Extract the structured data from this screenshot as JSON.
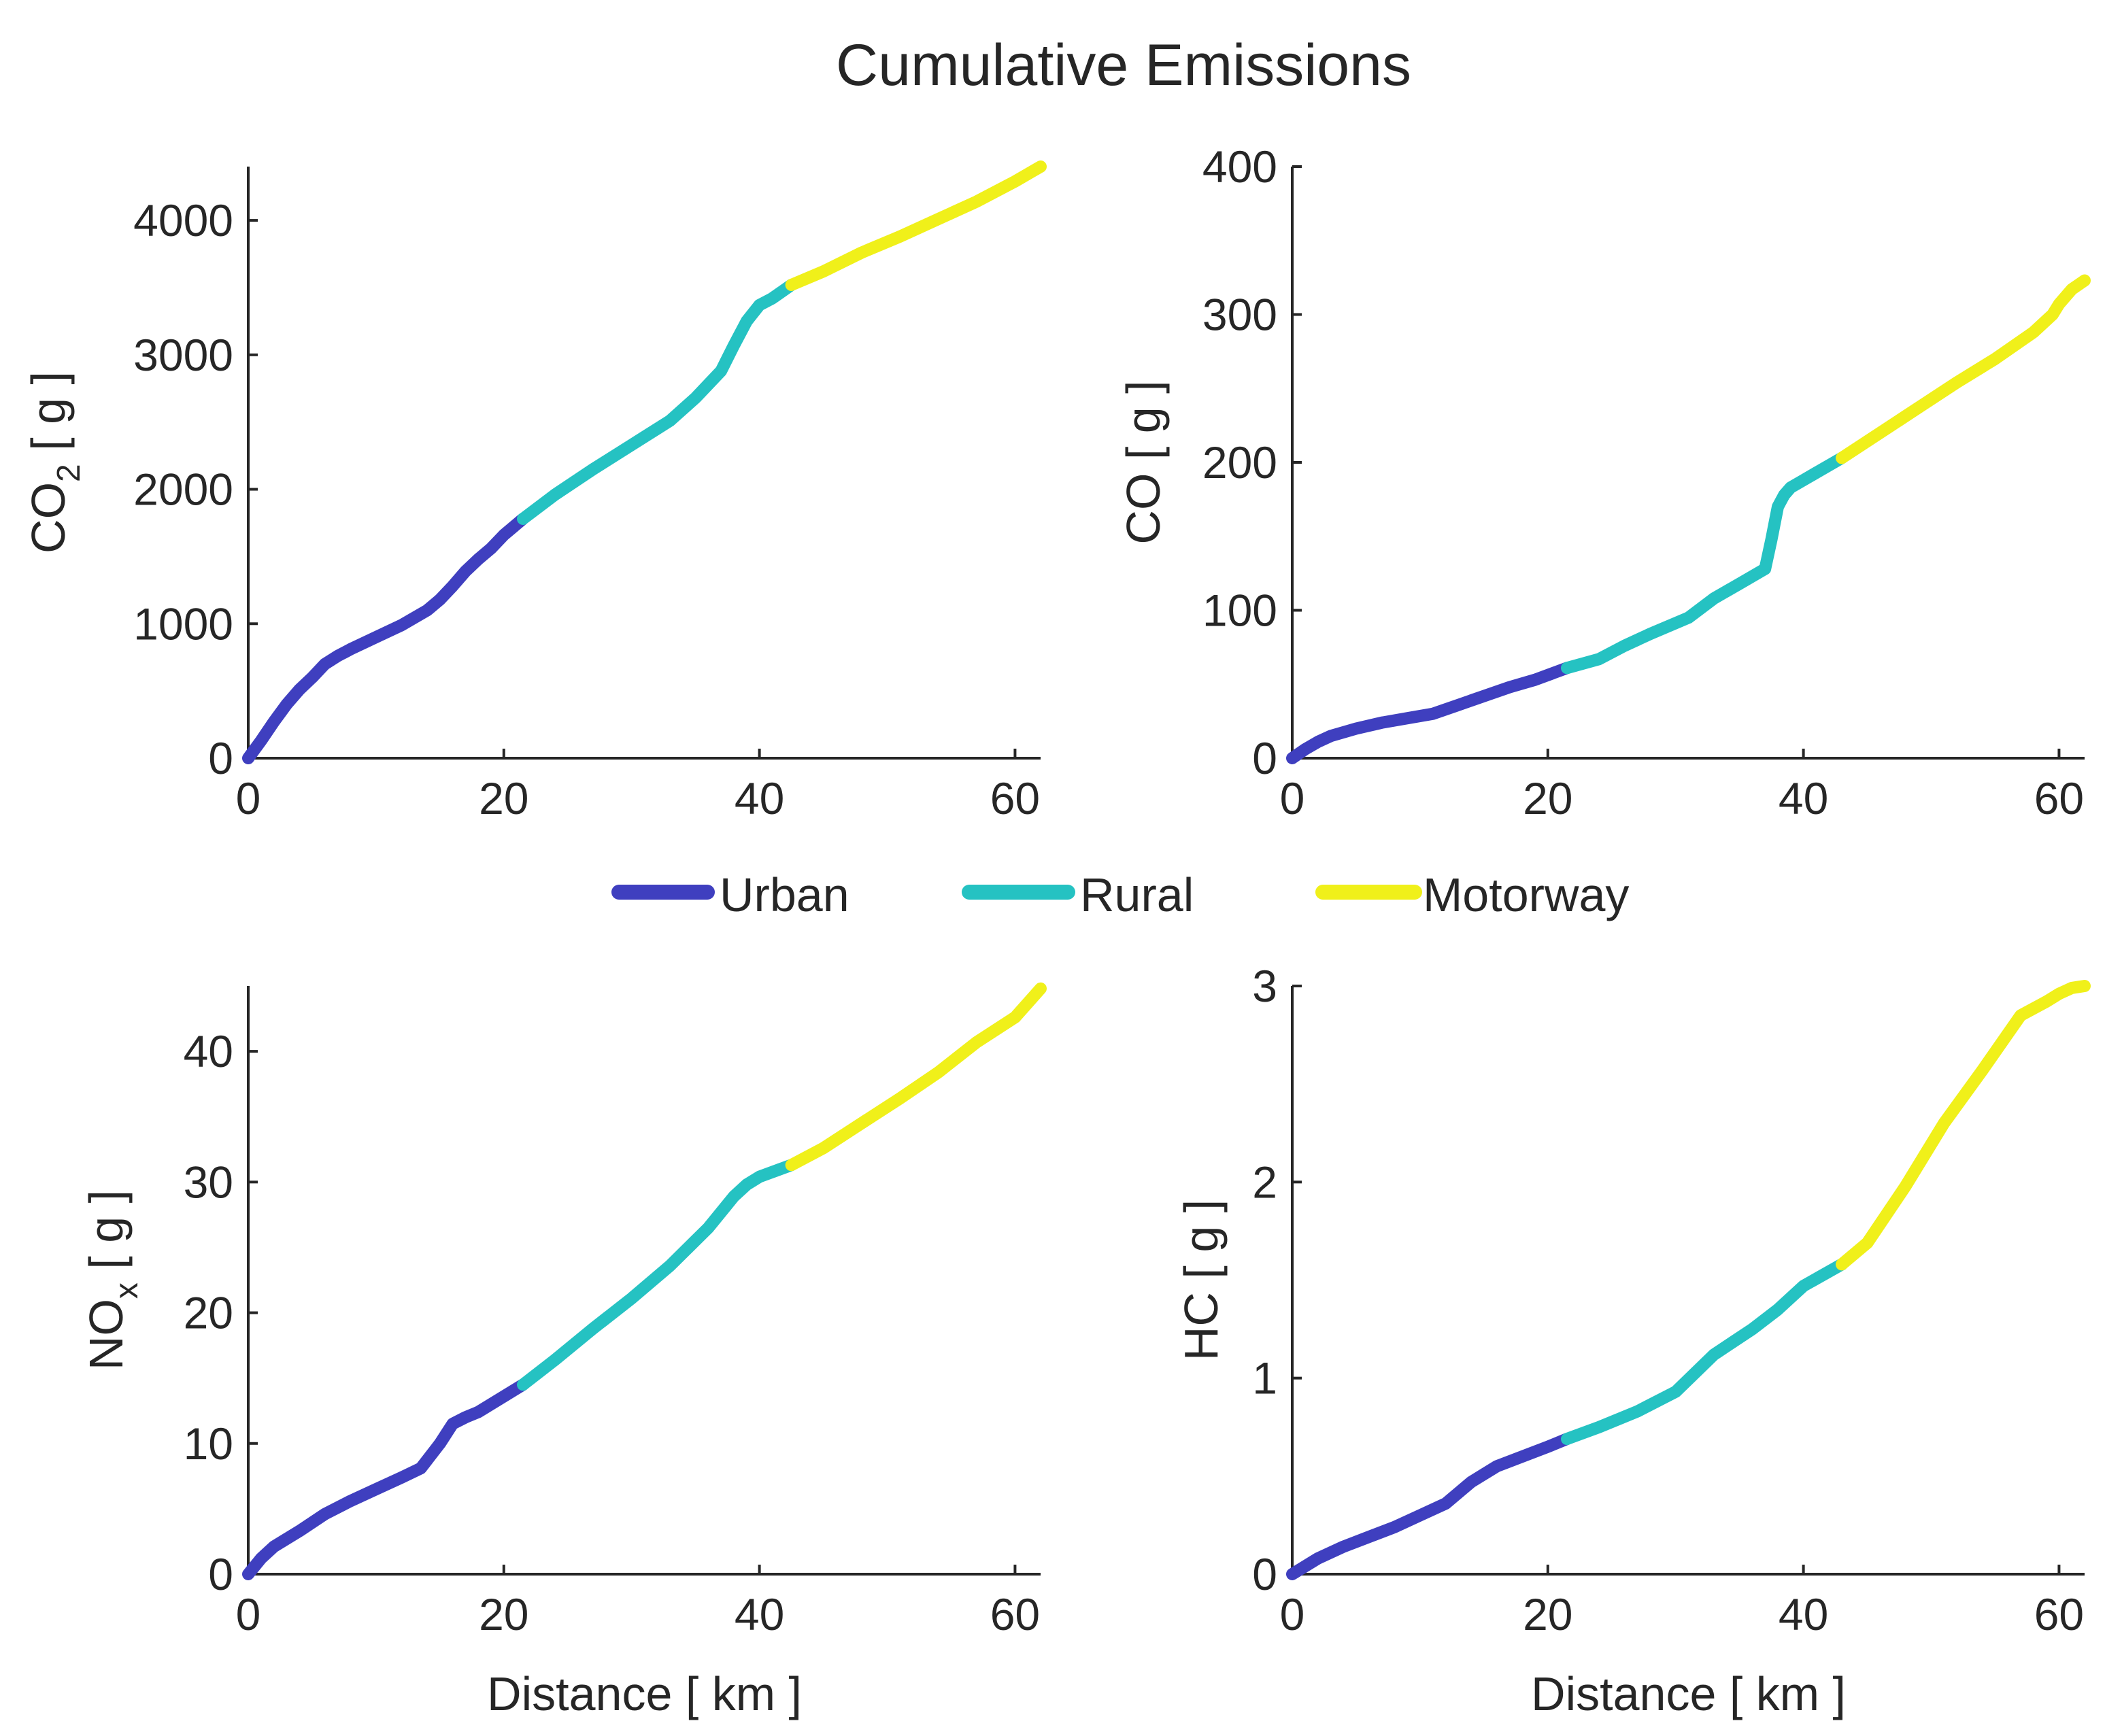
{
  "chart_data": {
    "title": "Cumulative Emissions",
    "type": "line",
    "legend": {
      "placement": "center",
      "entries": [
        {
          "name": "Urban",
          "color": "#3f3fbf"
        },
        {
          "name": "Rural",
          "color": "#25c2c2"
        },
        {
          "name": "Motorway",
          "color": "#f0f01a"
        }
      ]
    },
    "subplots": [
      {
        "id": "co2",
        "ylabel": "CO",
        "ylabel_sub": "2",
        "ylabel_unit": " [ g ]",
        "xlabel": "",
        "xlim": [
          0,
          62
        ],
        "ylim": [
          0,
          4400
        ],
        "xticks": [
          "0",
          "20",
          "40",
          "60"
        ],
        "yticks": [
          "0",
          "1000",
          "2000",
          "3000",
          "4000"
        ],
        "series": [
          {
            "name": "Urban",
            "x": [
              0,
              1,
              2,
              3,
              4,
              5,
              6,
              7,
              8,
              10,
              12,
              14,
              15,
              16,
              17,
              18,
              19,
              20,
              21.5
            ],
            "y": [
              0,
              130,
              270,
              400,
              510,
              600,
              700,
              760,
              810,
              900,
              990,
              1100,
              1180,
              1280,
              1390,
              1480,
              1560,
              1660,
              1780
            ]
          },
          {
            "name": "Rural",
            "x": [
              21.5,
              24,
              27,
              30,
              33,
              35,
              37,
              38,
              39,
              40,
              41,
              42.5
            ],
            "y": [
              1780,
              1960,
              2150,
              2330,
              2510,
              2680,
              2880,
              3070,
              3250,
              3370,
              3420,
              3520
            ]
          },
          {
            "name": "Motorway",
            "x": [
              42.5,
              45,
              48,
              51,
              54,
              57,
              60,
              62
            ],
            "y": [
              3520,
              3620,
              3760,
              3880,
              4010,
              4140,
              4290,
              4400
            ]
          }
        ]
      },
      {
        "id": "co",
        "ylabel": "CO",
        "ylabel_sub": "",
        "ylabel_unit": " [ g ]",
        "xlabel": "",
        "xlim": [
          0,
          62
        ],
        "ylim": [
          0,
          400
        ],
        "xticks": [
          "0",
          "20",
          "40",
          "60"
        ],
        "yticks": [
          "0",
          "100",
          "200",
          "300",
          "400"
        ],
        "series": [
          {
            "name": "Urban",
            "x": [
              0,
              1,
              2,
              3,
              5,
              7,
              9,
              11,
              13,
              15,
              17,
              19,
              21.5
            ],
            "y": [
              0,
              6,
              11,
              15,
              20,
              24,
              27,
              30,
              36,
              42,
              48,
              53,
              61
            ]
          },
          {
            "name": "Rural",
            "x": [
              21.5,
              24,
              26,
              28,
              31,
              33,
              35,
              37,
              37.5,
              38,
              38.5,
              39,
              40,
              41,
              43
            ],
            "y": [
              61,
              67,
              76,
              84,
              95,
              108,
              118,
              128,
              148,
              170,
              178,
              183,
              188,
              193,
              203
            ]
          },
          {
            "name": "Motorway",
            "x": [
              43,
              46,
              49,
              52,
              55,
              58,
              59.5,
              60,
              61,
              62
            ],
            "y": [
              203,
              220,
              237,
              254,
              270,
              288,
              300,
              307,
              317,
              323
            ]
          }
        ]
      },
      {
        "id": "nox",
        "ylabel": "NO",
        "ylabel_sub": "x",
        "ylabel_unit": " [ g ]",
        "xlabel": "Distance [ km ]",
        "xlim": [
          0,
          62
        ],
        "ylim": [
          0,
          45
        ],
        "xticks": [
          "0",
          "20",
          "40",
          "60"
        ],
        "yticks": [
          "0",
          "10",
          "20",
          "30",
          "40"
        ],
        "series": [
          {
            "name": "Urban",
            "x": [
              0,
              1,
              2,
              4,
              6,
              8,
              10,
              12,
              13.5,
              15,
              16,
              17,
              18,
              19,
              20,
              21.5
            ],
            "y": [
              0,
              1.2,
              2.1,
              3.3,
              4.6,
              5.6,
              6.5,
              7.4,
              8.1,
              10,
              11.5,
              12,
              12.4,
              13,
              13.6,
              14.5
            ]
          },
          {
            "name": "Rural",
            "x": [
              21.5,
              24,
              27,
              30,
              33,
              36,
              38,
              39,
              40,
              42.5
            ],
            "y": [
              14.5,
              16.4,
              18.8,
              21.1,
              23.6,
              26.5,
              28.9,
              29.8,
              30.4,
              31.3
            ]
          },
          {
            "name": "Motorway",
            "x": [
              42.5,
              45,
              48,
              51,
              54,
              57,
              60,
              62
            ],
            "y": [
              31.3,
              32.6,
              34.5,
              36.4,
              38.4,
              40.7,
              42.6,
              44.8
            ]
          }
        ]
      },
      {
        "id": "hc",
        "ylabel": "HC",
        "ylabel_sub": "",
        "ylabel_unit": " [ g ]",
        "xlabel": "Distance [ km ]",
        "xlim": [
          0,
          62
        ],
        "ylim": [
          0,
          3
        ],
        "xticks": [
          "0",
          "20",
          "40",
          "60"
        ],
        "yticks": [
          "0",
          "1",
          "2",
          "3"
        ],
        "series": [
          {
            "name": "Urban",
            "x": [
              0,
              2,
              4,
              6,
              8,
              10,
              12,
              14,
              16,
              18,
              20,
              21.5
            ],
            "y": [
              0,
              0.08,
              0.14,
              0.19,
              0.24,
              0.3,
              0.36,
              0.47,
              0.55,
              0.6,
              0.65,
              0.69
            ]
          },
          {
            "name": "Rural",
            "x": [
              21.5,
              24,
              27,
              30,
              33,
              36,
              38,
              40,
              43
            ],
            "y": [
              0.69,
              0.75,
              0.83,
              0.93,
              1.12,
              1.25,
              1.35,
              1.47,
              1.58
            ]
          },
          {
            "name": "Motorway",
            "x": [
              43,
              45,
              48,
              51,
              54,
              57,
              59,
              60,
              61,
              62
            ],
            "y": [
              1.58,
              1.69,
              1.98,
              2.3,
              2.57,
              2.85,
              2.92,
              2.96,
              2.99,
              3.0
            ]
          }
        ]
      }
    ]
  }
}
